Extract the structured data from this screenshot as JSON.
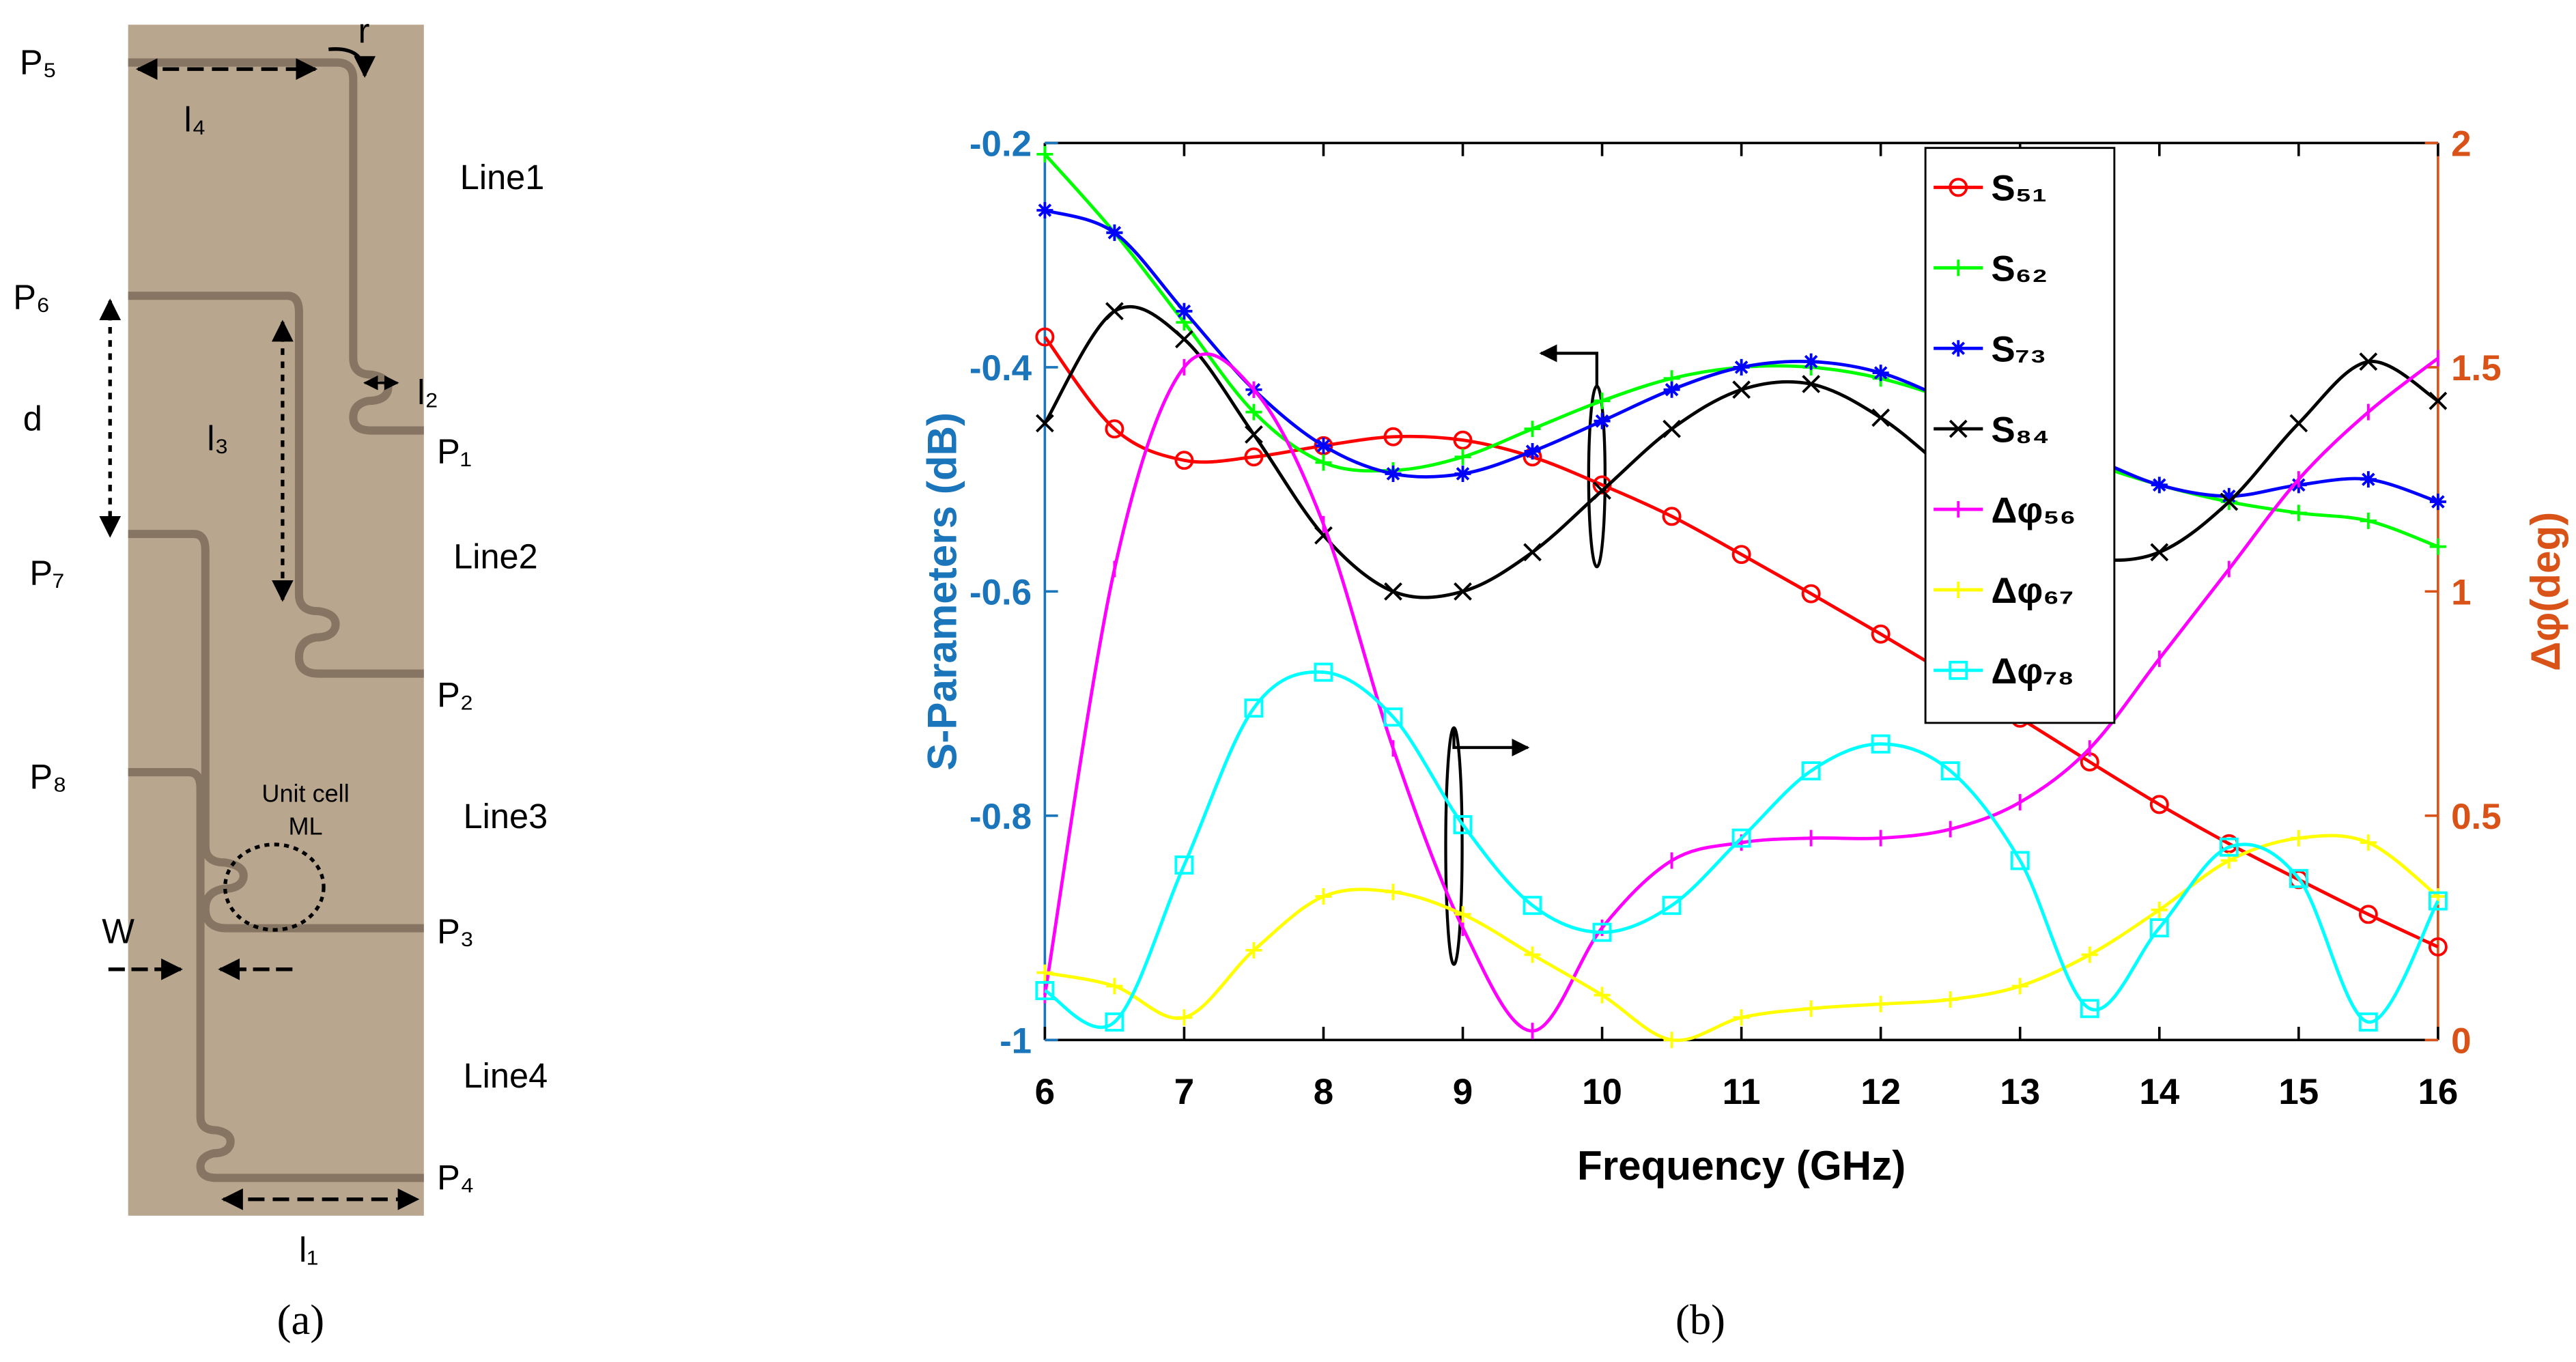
{
  "diagram": {
    "ports": [
      "P₁",
      "P₂",
      "P₃",
      "P₄",
      "P₅",
      "P₆",
      "P₇",
      "P₈"
    ],
    "lines": [
      "Line1",
      "Line2",
      "Line3",
      "Line4"
    ],
    "dimensions": {
      "l1": "l₁",
      "l2": "l₂",
      "l3": "l₃",
      "l4": "l₄",
      "r": "r",
      "d": "d",
      "W": "W"
    },
    "unit_cell": [
      "Unit cell",
      "ML"
    ]
  },
  "captions": [
    "(a)",
    "(b)"
  ],
  "chart_data": {
    "type": "line",
    "xlabel": "Frequency (GHz)",
    "ylabel": "S-Parameters (dB)",
    "y2label": "Δφ(deg)",
    "x": [
      6,
      6.5,
      7,
      7.5,
      8,
      8.5,
      9,
      9.5,
      10,
      10.5,
      11,
      11.5,
      12,
      12.5,
      13,
      13.5,
      14,
      14.5,
      15,
      15.5,
      16
    ],
    "xlim": [
      6,
      16
    ],
    "xticks": [
      6,
      7,
      8,
      9,
      10,
      11,
      12,
      13,
      14,
      15,
      16
    ],
    "ylim": [
      -1,
      -0.2
    ],
    "yticks": [
      -1,
      -0.8,
      -0.6,
      -0.4,
      -0.2
    ],
    "y2lim": [
      0,
      2
    ],
    "y2ticks": [
      0,
      0.5,
      1,
      1.5,
      2
    ],
    "ylabel_color": "#1a75bb",
    "y2label_color": "#d95319",
    "legend": "upper right",
    "series": [
      {
        "name": "S₅₁",
        "color": "#ff0000",
        "marker": "o",
        "axis": "y",
        "values": [
          -0.373,
          -0.455,
          -0.483,
          -0.48,
          -0.47,
          -0.462,
          -0.465,
          -0.48,
          -0.505,
          -0.533,
          -0.567,
          -0.602,
          -0.638,
          -0.675,
          -0.713,
          -0.752,
          -0.79,
          -0.825,
          -0.857,
          -0.888,
          -0.917
        ]
      },
      {
        "name": "S₆₂",
        "color": "#00ff00",
        "marker": "+",
        "axis": "y",
        "values": [
          -0.21,
          -0.28,
          -0.36,
          -0.44,
          -0.485,
          -0.492,
          -0.48,
          -0.455,
          -0.43,
          -0.41,
          -0.4,
          -0.4,
          -0.41,
          -0.43,
          -0.46,
          -0.485,
          -0.505,
          -0.52,
          -0.53,
          -0.537,
          -0.56
        ]
      },
      {
        "name": "S₇₃",
        "color": "#0000ff",
        "marker": "*",
        "axis": "y",
        "values": [
          -0.26,
          -0.28,
          -0.35,
          -0.42,
          -0.47,
          -0.495,
          -0.495,
          -0.475,
          -0.448,
          -0.42,
          -0.4,
          -0.395,
          -0.405,
          -0.43,
          -0.455,
          -0.48,
          -0.505,
          -0.515,
          -0.505,
          -0.5,
          -0.52
        ]
      },
      {
        "name": "S₈₄",
        "color": "#000000",
        "marker": "x",
        "axis": "y",
        "values": [
          -0.45,
          -0.35,
          -0.375,
          -0.46,
          -0.55,
          -0.6,
          -0.6,
          -0.565,
          -0.51,
          -0.455,
          -0.42,
          -0.415,
          -0.445,
          -0.495,
          -0.545,
          -0.57,
          -0.565,
          -0.52,
          -0.45,
          -0.395,
          -0.43
        ]
      },
      {
        "name": "Δφ₅₆",
        "color": "#ff00ff",
        "marker": "|",
        "axis": "y2",
        "values": [
          0.1,
          1.05,
          1.5,
          1.45,
          1.15,
          0.65,
          0.25,
          0.02,
          0.25,
          0.4,
          0.44,
          0.45,
          0.45,
          0.47,
          0.53,
          0.65,
          0.85,
          1.05,
          1.25,
          1.4,
          1.52
        ]
      },
      {
        "name": "Δφ₆₇",
        "color": "#ffff00",
        "marker": "+",
        "axis": "y2",
        "values": [
          0.15,
          0.12,
          0.05,
          0.2,
          0.32,
          0.33,
          0.28,
          0.19,
          0.1,
          0.0,
          0.05,
          0.07,
          0.08,
          0.09,
          0.12,
          0.19,
          0.29,
          0.4,
          0.45,
          0.44,
          0.32
        ]
      },
      {
        "name": "Δφ₇₈",
        "color": "#00ffff",
        "marker": "s",
        "axis": "y2",
        "values": [
          0.11,
          0.04,
          0.39,
          0.74,
          0.82,
          0.72,
          0.48,
          0.3,
          0.24,
          0.3,
          0.45,
          0.6,
          0.66,
          0.6,
          0.4,
          0.07,
          0.25,
          0.43,
          0.36,
          0.04,
          0.31
        ]
      }
    ]
  }
}
